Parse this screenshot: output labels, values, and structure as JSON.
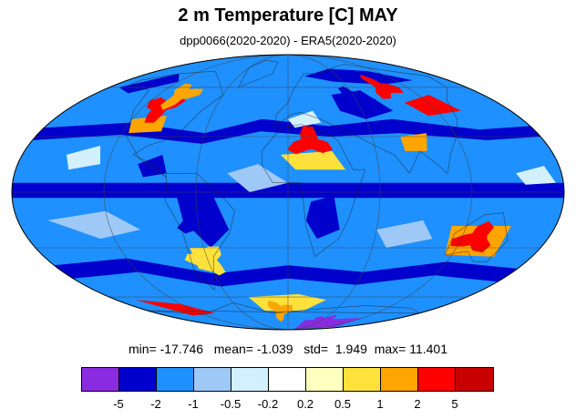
{
  "title": "2 m Temperature [C] MAY",
  "subtitle": "dpp0066(2020-2020) - ERA5(2020-2020)",
  "stats": {
    "min_label": "min=",
    "min": "-17.746",
    "mean_label": "mean=",
    "mean": "-1.039",
    "std_label": "std=",
    "std": "1.949",
    "max_label": "max=",
    "max": "11.401"
  },
  "colorbar": {
    "colors": [
      "#8a2be2",
      "#0000cd",
      "#1e90ff",
      "#9ec8f5",
      "#d2f0ff",
      "#ffffff",
      "#ffffc0",
      "#ffe13c",
      "#ffa500",
      "#ff0000",
      "#c80000"
    ],
    "tick_labels": [
      "-5",
      "-2",
      "-1",
      "-0.5",
      "-0.2",
      "0.2",
      "0.5",
      "1",
      "2",
      "5"
    ]
  },
  "map": {
    "projection": "mollweide",
    "background_color": "#1e90ff",
    "regions": [
      {
        "name": "north-america-hot",
        "color": "#ff0000",
        "lon": -105,
        "lat": 47
      },
      {
        "name": "canada-hot",
        "color": "#ffa500",
        "lon": -98,
        "lat": 55
      },
      {
        "name": "siberia-hot",
        "color": "#ff0000",
        "lon": 95,
        "lat": 60
      },
      {
        "name": "north-africa-hot",
        "color": "#ff0000",
        "lon": 15,
        "lat": 27
      },
      {
        "name": "australia-hot",
        "color": "#ff0000",
        "lon": 130,
        "lat": -25
      },
      {
        "name": "argentina-warm",
        "color": "#ffe13c",
        "lon": -60,
        "lat": -37
      },
      {
        "name": "antarctic-cold",
        "color": "#8a2be2",
        "lon": 60,
        "lat": -80
      },
      {
        "name": "east-antarctic-warm",
        "color": "#ffa500",
        "lon": -10,
        "lat": -70
      },
      {
        "name": "central-asia-cold",
        "color": "#0000cd",
        "lon": 60,
        "lat": 52
      },
      {
        "name": "south-america-cold",
        "color": "#0000cd",
        "lon": -60,
        "lat": -15
      }
    ]
  }
}
